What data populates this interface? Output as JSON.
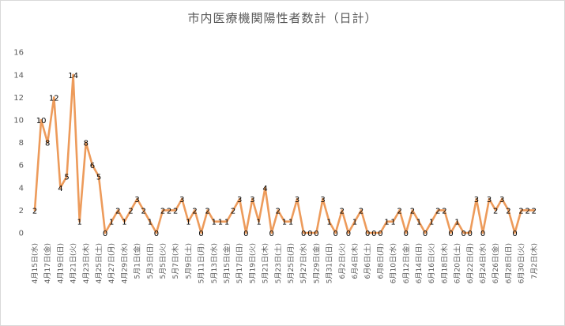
{
  "chart_data": {
    "type": "line",
    "title": "市内医療機関陽性者数計（日計）",
    "xlabel": "",
    "ylabel": "",
    "ylim": [
      0,
      16
    ],
    "yticks": [
      0,
      2,
      4,
      6,
      8,
      10,
      12,
      14,
      16
    ],
    "grid": false,
    "legend": "none",
    "line_color": "#ed9b5b",
    "x": [
      "4月15日(水)",
      "4月16日(木)",
      "4月17日(金)",
      "4月18日(土)",
      "4月19日(日)",
      "4月20日(月)",
      "4月21日(火)",
      "4月22日(水)",
      "4月23日(木)",
      "4月24日(金)",
      "4月25日(土)",
      "4月26日(日)",
      "4月27日(月)",
      "4月28日(火)",
      "4月29日(水)",
      "4月30日(木)",
      "5月1日(金)",
      "5月2日(土)",
      "5月3日(日)",
      "5月4日(月)",
      "5月5日(火)",
      "5月6日(水)",
      "5月7日(木)",
      "5月8日(金)",
      "5月9日(土)",
      "5月10日(日)",
      "5月11日(月)",
      "5月12日(火)",
      "5月13日(水)",
      "5月14日(木)",
      "5月15日(金)",
      "5月16日(土)",
      "5月17日(日)",
      "5月18日(月)",
      "5月19日(火)",
      "5月20日(水)",
      "5月21日(木)",
      "5月22日(金)",
      "5月23日(土)",
      "5月24日(日)",
      "5月25日(月)",
      "5月26日(火)",
      "5月27日(水)",
      "5月28日(木)",
      "5月29日(金)",
      "5月30日(土)",
      "5月31日(日)",
      "6月1日(月)",
      "6月2日(火)",
      "6月3日(水)",
      "6月4日(木)",
      "6月5日(金)",
      "6月6日(土)",
      "6月7日(日)",
      "6月8日(月)",
      "6月9日(火)",
      "6月10日(水)",
      "6月11日(木)",
      "6月12日(金)",
      "6月13日(土)",
      "6月14日(日)",
      "6月15日(月)",
      "6月16日(火)",
      "6月17日(水)",
      "6月18日(木)",
      "6月19日(金)",
      "6月20日(土)",
      "6月21日(日)",
      "6月22日(月)",
      "6月23日(火)",
      "6月24日(水)",
      "6月25日(木)",
      "6月26日(金)",
      "6月27日(土)",
      "6月28日(日)",
      "6月29日(月)",
      "6月30日(火)",
      "7月1日(水)",
      "7月2日(木)"
    ],
    "series": [
      {
        "values": [
          2,
          10,
          8,
          12,
          4,
          5,
          14,
          1,
          8,
          6,
          5,
          0,
          1,
          2,
          1,
          2,
          3,
          2,
          1,
          0,
          2,
          2,
          2,
          3,
          1,
          2,
          0,
          2,
          1,
          1,
          1,
          2,
          3,
          0,
          3,
          1,
          4,
          0,
          2,
          1,
          1,
          3,
          0,
          0,
          0,
          3,
          1,
          0,
          2,
          0,
          1,
          2,
          0,
          0,
          0,
          1,
          1,
          2,
          0,
          2,
          1,
          0,
          1,
          2,
          2,
          0,
          1,
          0,
          0,
          3,
          0,
          3,
          2,
          3,
          2,
          0,
          2,
          2,
          2
        ]
      }
    ],
    "xtick_labels": [
      "4月15日(水)",
      "4月17日(金)",
      "4月19日(日)",
      "4月21日(火)",
      "4月23日(木)",
      "4月25日(土)",
      "4月27日(月)",
      "4月29日(水)",
      "5月1日(金)",
      "5月3日(日)",
      "5月5日(火)",
      "5月7日(木)",
      "5月9日(土)",
      "5月11日(月)",
      "5月13日(水)",
      "5月15日(金)",
      "5月17日(日)",
      "5月19日(火)",
      "5月21日(木)",
      "5月23日(土)",
      "5月25日(月)",
      "5月27日(水)",
      "5月29日(金)",
      "5月31日(日)",
      "6月2日(火)",
      "6月4日(木)",
      "6月6日(土)",
      "6月8日(月)",
      "6月10日(水)",
      "6月12日(金)",
      "6月14日(日)",
      "6月16日(火)",
      "6月18日(木)",
      "6月20日(土)",
      "6月22日(月)",
      "6月24日(水)",
      "6月26日(金)",
      "6月28日(日)",
      "6月30日(火)",
      "7月2日(木)"
    ]
  }
}
